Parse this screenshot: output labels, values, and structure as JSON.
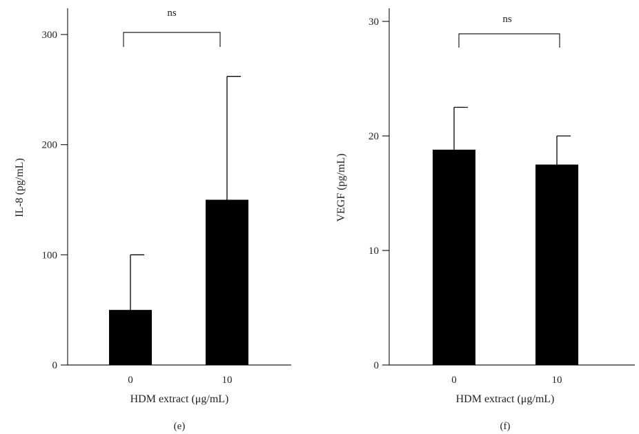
{
  "chart_data": [
    {
      "type": "bar",
      "panel_label": "(e)",
      "categories": [
        "0",
        "10"
      ],
      "values": [
        50,
        150
      ],
      "errors": [
        50,
        112
      ],
      "xlabel": "HDM extract (μg/mL)",
      "ylabel": "IL-8 (pg/mL)",
      "ylim": [
        0,
        300
      ],
      "yticks": [
        "0",
        "100",
        "200",
        "300"
      ],
      "significance": "ns",
      "bar_color": "#000000"
    },
    {
      "type": "bar",
      "panel_label": "(f)",
      "categories": [
        "0",
        "10"
      ],
      "values": [
        18.8,
        17.5
      ],
      "errors": [
        3.7,
        2.5
      ],
      "xlabel": "HDM extract (μg/mL)",
      "ylabel": "VEGF (pg/mL)",
      "ylim": [
        0,
        30
      ],
      "yticks": [
        "0",
        "10",
        "20",
        "30"
      ],
      "significance": "ns",
      "bar_color": "#000000"
    }
  ]
}
